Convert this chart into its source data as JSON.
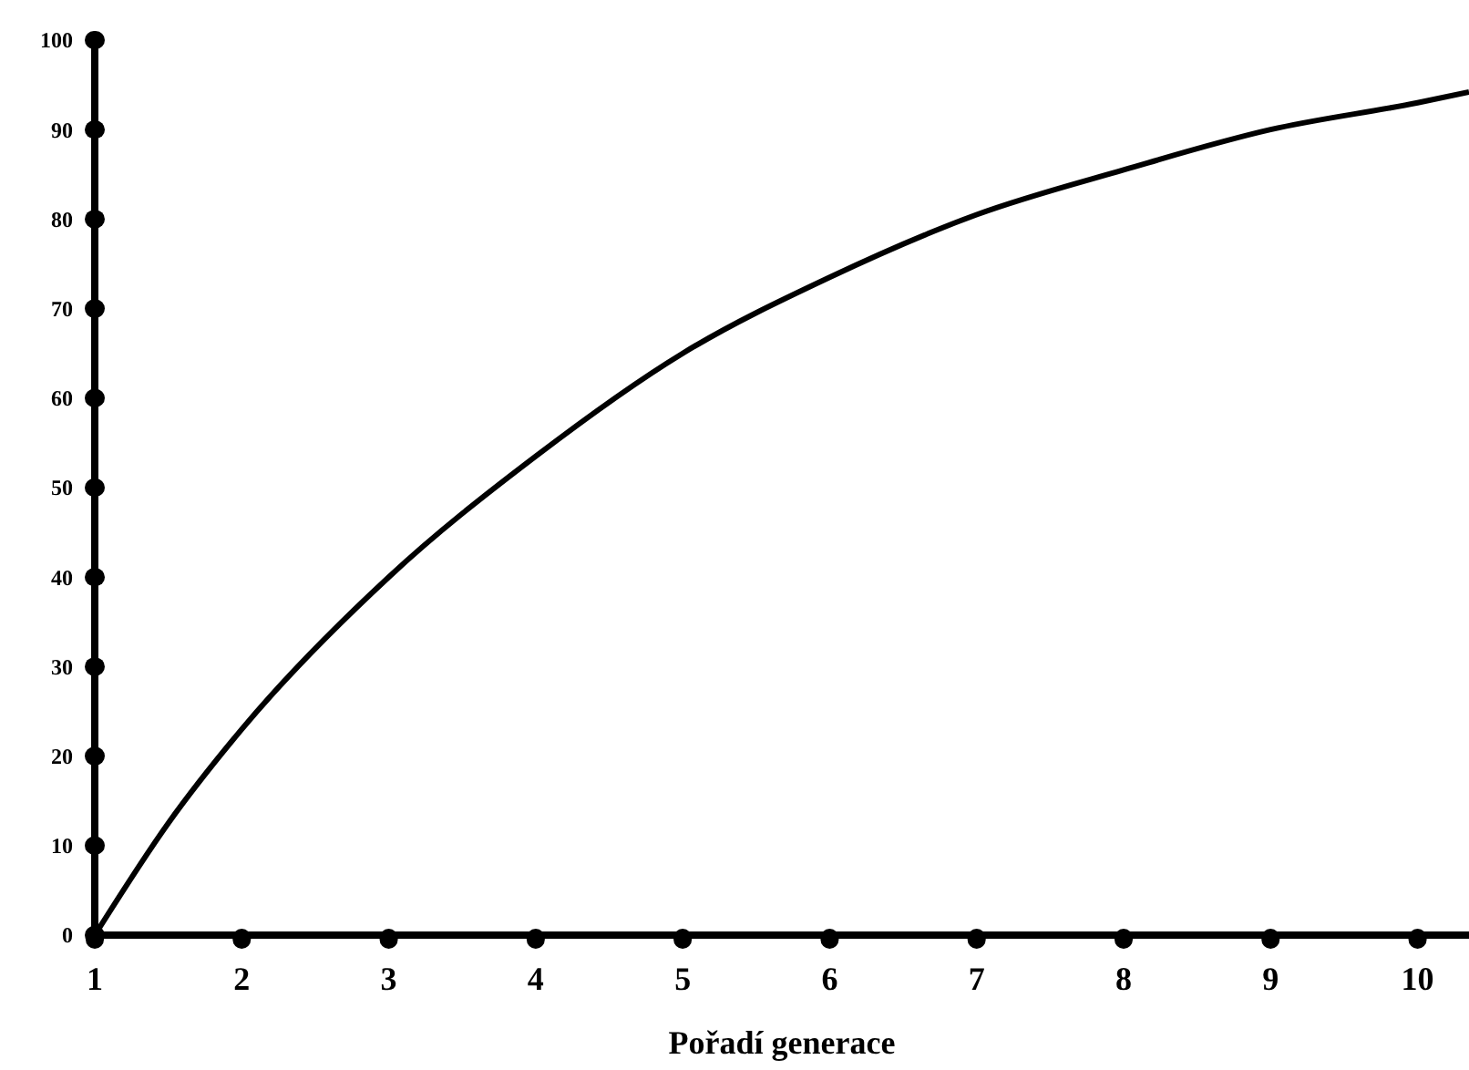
{
  "chart_data": {
    "type": "line",
    "xlabel": "Pořadí generace",
    "x": [
      1,
      1.5,
      2,
      3,
      4,
      5,
      6,
      7,
      8,
      9,
      10,
      10.35
    ],
    "series": [
      {
        "color": "#000000",
        "values": [
          0,
          12.5,
          23,
          40,
          53.5,
          65,
          73.5,
          80.5,
          85.5,
          90,
          93,
          94.2
        ]
      }
    ],
    "xlim": [
      1,
      10.35
    ],
    "xticks": [
      1,
      2,
      3,
      4,
      5,
      6,
      7,
      8,
      9,
      10
    ],
    "ylim": [
      0,
      100
    ],
    "yticks": [
      0,
      10,
      20,
      30,
      40,
      50,
      60,
      70,
      80,
      90,
      100
    ],
    "grid": false,
    "marker": "none",
    "line_style": "solid"
  }
}
